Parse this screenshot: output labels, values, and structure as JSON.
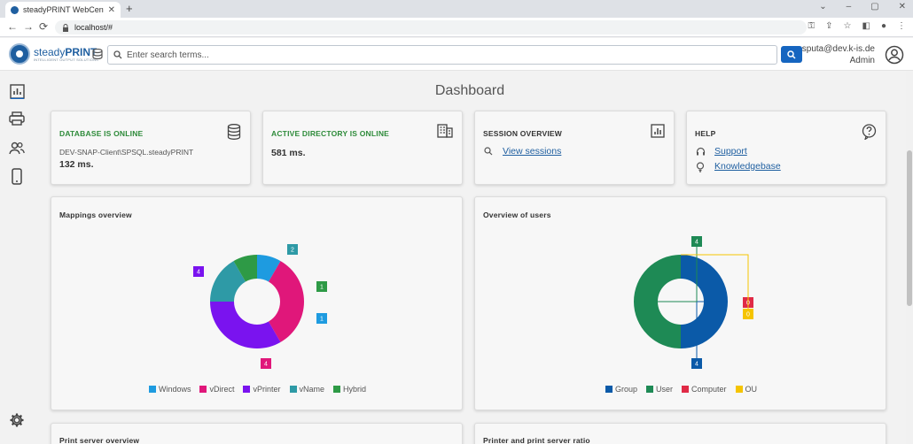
{
  "browser": {
    "tab_title": "steadyPRINT WebCenter",
    "new_tab": "+",
    "address": "localhost/#"
  },
  "header": {
    "logo_light": "steady",
    "logo_bold": "PRINT",
    "logo_tagline": "INTELLIGENT OUTPUT SOLUTIONS",
    "search_placeholder": "Enter search terms...",
    "user_email": "sputa@dev.k-is.de",
    "user_role": "Admin"
  },
  "page": {
    "title": "Dashboard"
  },
  "cards": {
    "database": {
      "title": "DATABASE IS ONLINE",
      "server": "DEV-SNAP-Client\\SPSQL.steadyPRINT",
      "latency": "132 ms."
    },
    "active_directory": {
      "title": "ACTIVE DIRECTORY IS ONLINE",
      "latency": "581 ms."
    },
    "session": {
      "title": "SESSION OVERVIEW",
      "link": "View sessions"
    },
    "help": {
      "title": "HELP",
      "support": "Support",
      "knowledgebase": "Knowledgebase"
    },
    "mappings": {
      "title": "Mappings overview"
    },
    "users": {
      "title": "Overview of users"
    },
    "print_server": {
      "title": "Print server overview"
    },
    "ratio": {
      "title": "Printer and print server ratio"
    }
  },
  "chart_data": [
    {
      "type": "pie",
      "title": "Mappings overview",
      "categories": [
        "Windows",
        "vDirect",
        "vPrinter",
        "vName",
        "Hybrid"
      ],
      "values": [
        1,
        4,
        4,
        2,
        1
      ],
      "colors": [
        "#1e9be0",
        "#e0177a",
        "#7a13ef",
        "#2e9aa6",
        "#2e9a46"
      ],
      "legend_position": "bottom"
    },
    {
      "type": "pie",
      "title": "Overview of users",
      "categories": [
        "Group",
        "User",
        "Computer",
        "OU"
      ],
      "values": [
        4,
        4,
        0,
        0
      ],
      "colors": [
        "#0b5aa8",
        "#1e8a55",
        "#e02a46",
        "#f5c400"
      ],
      "legend_position": "bottom"
    }
  ]
}
